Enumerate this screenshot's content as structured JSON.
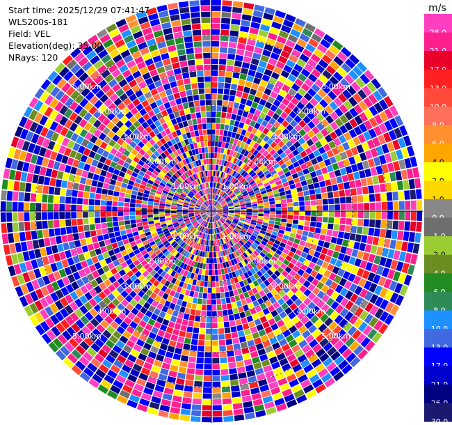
{
  "info": {
    "start_time": "Start time: 2025/12/29 07:41:47",
    "instrument": "WLS200s-181",
    "field": "Field: VEL",
    "elevation": "Elevation(deg): 35.00",
    "nrays": "NRays: 120"
  },
  "chart_data": {
    "type": "heatmap",
    "projection": "polar-ppi",
    "field": "VEL",
    "elevation_deg": 35.0,
    "nrays": 120,
    "range_rings_km": [
      1.0,
      2.0,
      3.0,
      4.0,
      5.0
    ],
    "ring_labels": [
      "1.00km",
      "2.00km",
      "3.00km",
      "4.00km",
      "5.00km"
    ],
    "max_range_km": 6.0,
    "colorbar": {
      "unit": "m/s",
      "ticks": [
        "26.0",
        "21.0",
        "17.0",
        "13.0",
        "10.0",
        "8.0",
        "6.0",
        "4.0",
        "2.0",
        "1.0",
        "0.0",
        "-1.0",
        "-2.0",
        "-4.0",
        "-6.0",
        "-8.0",
        "-10.0",
        "-13.0",
        "-17.0",
        "-21.0",
        "-26.0",
        "-30.0"
      ],
      "colors": [
        "#ff3fbf",
        "#ff1f8f",
        "#e8002a",
        "#ff2020",
        "#ff4a3a",
        "#ff6f5a",
        "#ff9030",
        "#ffa500",
        "#ffff00",
        "#ffd700",
        "#888888",
        "#6e6e6e",
        "#9acd32",
        "#6b8e23",
        "#228b22",
        "#2e8b57",
        "#1e90ff",
        "#4169e1",
        "#0000ff",
        "#0000cd",
        "#000080",
        "#191970"
      ]
    }
  }
}
